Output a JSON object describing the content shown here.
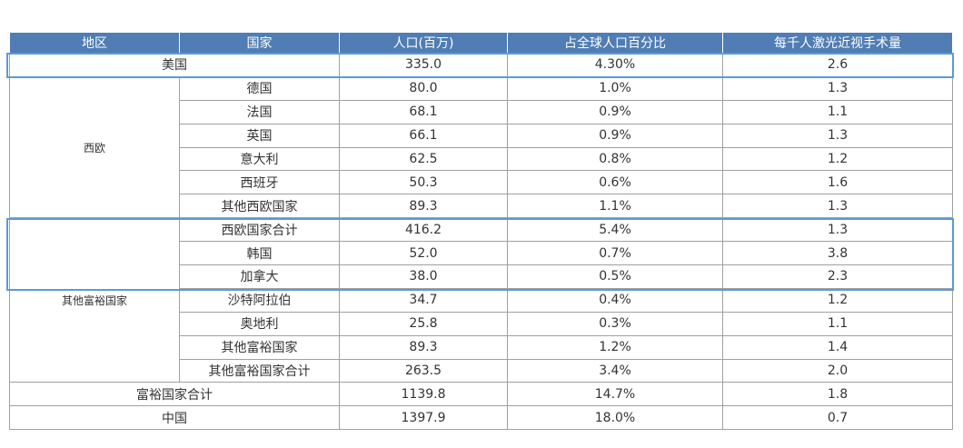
{
  "table": {
    "header": [
      "地区",
      "国家",
      "人口(百万)",
      "占全球人口百分比",
      "每千人激光近视手术量"
    ],
    "rows": [
      [
        "美国",
        "335.0",
        "4.30%",
        "2.6"
      ],
      [
        "西欧",
        "德国",
        "80.0",
        "1.0%",
        "1.3"
      ],
      [
        "法国",
        "68.1",
        "0.9%",
        "1.1"
      ],
      [
        "英国",
        "66.1",
        "0.9%",
        "1.3"
      ],
      [
        "意大利",
        "62.5",
        "0.8%",
        "1.2"
      ],
      [
        "西班牙",
        "50.3",
        "0.6%",
        "1.6"
      ],
      [
        "其他西欧国家",
        "89.3",
        "1.1%",
        "1.3"
      ],
      [
        "其他富裕国家",
        "西欧国家合计",
        "416.2",
        "5.4%",
        "1.3"
      ],
      [
        "韩国",
        "52.0",
        "0.7%",
        "3.8"
      ],
      [
        "加拿大",
        "38.0",
        "0.5%",
        "2.3"
      ],
      [
        "沙特阿拉伯",
        "34.7",
        "0.4%",
        "1.2"
      ],
      [
        "奥地利",
        "25.8",
        "0.3%",
        "1.1"
      ],
      [
        "其他富裕国家",
        "89.3",
        "1.2%",
        "1.4"
      ],
      [
        "其他富裕国家合计",
        "263.5",
        "3.4%",
        "2.0"
      ],
      [
        "富裕国家合计",
        "1139.8",
        "14.7%",
        "1.8"
      ],
      [
        "中国",
        "1397.9",
        "18.0%",
        "0.7"
      ]
    ]
  }
}
